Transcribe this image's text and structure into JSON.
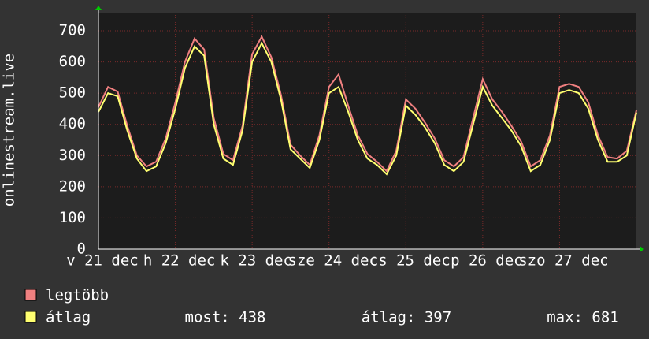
{
  "chart_data": {
    "type": "line",
    "ylabel": "onlinestream.live",
    "x": [
      0,
      3,
      6,
      9,
      12,
      15,
      18,
      21,
      24,
      27,
      30,
      33,
      36,
      39,
      42,
      45,
      48,
      51,
      54,
      57,
      60,
      63,
      66,
      69,
      72,
      75,
      78,
      81,
      84,
      87,
      90,
      93,
      96,
      99,
      102,
      105,
      108,
      111,
      114,
      117,
      120,
      123,
      126,
      129,
      132,
      135,
      138,
      141,
      144,
      147,
      150,
      153,
      156,
      159,
      162,
      165,
      168
    ],
    "series": [
      {
        "name": "legtöbb",
        "color": "#f08080",
        "values": [
          455,
          520,
          505,
          395,
          300,
          265,
          280,
          355,
          470,
          600,
          675,
          640,
          420,
          305,
          285,
          395,
          625,
          681,
          615,
          495,
          335,
          300,
          270,
          365,
          520,
          560,
          460,
          365,
          305,
          280,
          250,
          315,
          480,
          450,
          405,
          355,
          285,
          265,
          295,
          420,
          545,
          480,
          440,
          395,
          345,
          265,
          285,
          365,
          520,
          530,
          520,
          470,
          365,
          295,
          290,
          315,
          445
        ]
      },
      {
        "name": "átlag",
        "color": "#ffff70",
        "values": [
          440,
          500,
          490,
          380,
          290,
          250,
          265,
          340,
          450,
          580,
          650,
          620,
          400,
          290,
          270,
          380,
          600,
          660,
          600,
          480,
          320,
          290,
          260,
          350,
          500,
          520,
          440,
          350,
          290,
          270,
          240,
          300,
          460,
          430,
          390,
          340,
          270,
          250,
          280,
          400,
          520,
          460,
          420,
          380,
          330,
          250,
          270,
          350,
          500,
          510,
          500,
          450,
          350,
          280,
          280,
          300,
          438
        ]
      }
    ],
    "xlim": [
      0,
      168
    ],
    "xticks": [
      {
        "value": 0,
        "label": "v 21 dec"
      },
      {
        "value": 24,
        "label": "h 22 dec"
      },
      {
        "value": 48,
        "label": "k 23 dec"
      },
      {
        "value": 72,
        "label": "sze 24 dec"
      },
      {
        "value": 96,
        "label": "cs 25 dec"
      },
      {
        "value": 120,
        "label": "p 26 dec"
      },
      {
        "value": 144,
        "label": "szo 27 dec"
      }
    ],
    "ylim": [
      0,
      700
    ],
    "yticks": [
      0,
      100,
      200,
      300,
      400,
      500,
      600,
      700
    ],
    "grid": true,
    "stats": [
      "most: 438",
      "átlag: 397",
      "max: 681"
    ]
  }
}
